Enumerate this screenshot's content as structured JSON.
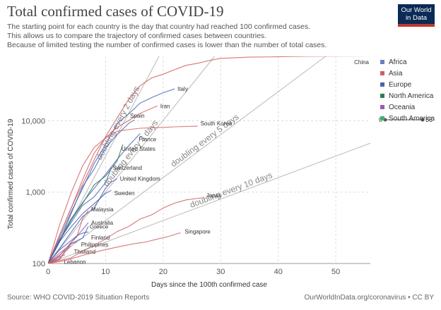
{
  "header": {
    "title": "Total confirmed cases of COVID-19",
    "subtitle_lines": [
      "The starting point for each country is the day that country had reached 100 confirmed cases.",
      "This allows us to compare the trajectory of confirmed cases between countries.",
      "Because of limited testing the number of confirmed cases is lower than the number of total cases."
    ]
  },
  "logo": {
    "line1": "Our World",
    "line2": "in Data"
  },
  "footer": {
    "source": "Source: WHO COVID-2019 Situation Reports",
    "credit": "OurWorldInData.org/coronavirus • CC BY"
  },
  "timeline": {
    "start": "0",
    "end": "56"
  },
  "colors": {
    "Africa": "#6d7fc1",
    "Asia": "#d05f60",
    "Europe": "#4a63b0",
    "North America": "#2e7d4f",
    "Oceania": "#9b59b6",
    "South America": "#3cb371",
    "grid": "#dddddd",
    "doubling": "#b8b8b8"
  },
  "chart_data": {
    "type": "line",
    "xlabel": "Days since the 100th confirmed case",
    "ylabel": "Total confirmed cases of COVID-19",
    "xlim": [
      0,
      56
    ],
    "ylim": [
      100,
      80000
    ],
    "yscale": "log",
    "x_ticks": [
      0,
      10,
      20,
      30,
      40,
      50
    ],
    "y_ticks": [
      {
        "value": 100,
        "label": "100"
      },
      {
        "value": 1000,
        "label": "1,000"
      },
      {
        "value": 10000,
        "label": "10,000"
      }
    ],
    "grid": true,
    "legend_position": "right",
    "legend": [
      "Africa",
      "Asia",
      "Europe",
      "North America",
      "Oceania",
      "South America"
    ],
    "doubling_lines": [
      {
        "label": "doubling every 2 days",
        "doubling_days": 2
      },
      {
        "label": "doubling every 3 days",
        "doubling_days": 3
      },
      {
        "label": "doubling every 5 days",
        "doubling_days": 5
      },
      {
        "label": "doubling every 10 days",
        "doubling_days": 10
      }
    ],
    "series": [
      {
        "name": "China",
        "region": "Asia",
        "points": [
          [
            0,
            100
          ],
          [
            2,
            250
          ],
          [
            4,
            600
          ],
          [
            6,
            1300
          ],
          [
            8,
            2800
          ],
          [
            10,
            6000
          ],
          [
            12,
            11000
          ],
          [
            14,
            20000
          ],
          [
            16,
            31000
          ],
          [
            18,
            40000
          ],
          [
            20,
            45000
          ],
          [
            22,
            52000
          ],
          [
            24,
            60000
          ],
          [
            26,
            64000
          ],
          [
            28,
            70000
          ],
          [
            30,
            75000
          ],
          [
            35,
            78000
          ],
          [
            40,
            79000
          ],
          [
            45,
            80000
          ],
          [
            50,
            80500
          ],
          [
            56,
            81000
          ]
        ]
      },
      {
        "name": "Italy",
        "region": "Europe",
        "points": [
          [
            0,
            100
          ],
          [
            2,
            229
          ],
          [
            4,
            528
          ],
          [
            6,
            1128
          ],
          [
            8,
            2502
          ],
          [
            10,
            4636
          ],
          [
            12,
            9172
          ],
          [
            14,
            12462
          ],
          [
            16,
            17660
          ],
          [
            18,
            21157
          ],
          [
            20,
            24747
          ],
          [
            22,
            27980
          ]
        ]
      },
      {
        "name": "Iran",
        "region": "Asia",
        "points": [
          [
            0,
            100
          ],
          [
            2,
            250
          ],
          [
            4,
            593
          ],
          [
            6,
            1501
          ],
          [
            8,
            3513
          ],
          [
            10,
            5823
          ],
          [
            12,
            8042
          ],
          [
            14,
            10075
          ],
          [
            16,
            12729
          ],
          [
            18,
            14991
          ],
          [
            19,
            16169
          ]
        ]
      },
      {
        "name": "Spain",
        "region": "Europe",
        "points": [
          [
            0,
            100
          ],
          [
            2,
            200
          ],
          [
            4,
            500
          ],
          [
            6,
            1200
          ],
          [
            8,
            2100
          ],
          [
            10,
            4200
          ],
          [
            12,
            6391
          ],
          [
            14,
            9191
          ],
          [
            15,
            10300
          ]
        ]
      },
      {
        "name": "France",
        "region": "Europe",
        "points": [
          [
            0,
            100
          ],
          [
            2,
            212
          ],
          [
            4,
            423
          ],
          [
            6,
            716
          ],
          [
            8,
            1126
          ],
          [
            10,
            1784
          ],
          [
            12,
            2876
          ],
          [
            14,
            4469
          ],
          [
            16,
            6633
          ]
        ]
      },
      {
        "name": "South Korea",
        "region": "Asia",
        "points": [
          [
            0,
            100
          ],
          [
            2,
            346
          ],
          [
            4,
            977
          ],
          [
            6,
            2337
          ],
          [
            8,
            4212
          ],
          [
            10,
            5766
          ],
          [
            12,
            7134
          ],
          [
            14,
            7513
          ],
          [
            16,
            7869
          ],
          [
            18,
            7979
          ],
          [
            20,
            8086
          ],
          [
            22,
            8236
          ],
          [
            24,
            8320
          ],
          [
            26,
            8413
          ]
        ]
      },
      {
        "name": "United States",
        "region": "North America",
        "points": [
          [
            0,
            100
          ],
          [
            2,
            213
          ],
          [
            4,
            402
          ],
          [
            6,
            696
          ],
          [
            8,
            1264
          ],
          [
            10,
            1678
          ],
          [
            12,
            2726
          ],
          [
            13,
            4661
          ]
        ]
      },
      {
        "name": "Switzerland",
        "region": "Europe",
        "points": [
          [
            0,
            100
          ],
          [
            2,
            214
          ],
          [
            4,
            374
          ],
          [
            6,
            652
          ],
          [
            8,
            858
          ],
          [
            10,
            1359
          ],
          [
            11,
            2200
          ]
        ]
      },
      {
        "name": "United Kingdom",
        "region": "Europe",
        "points": [
          [
            0,
            100
          ],
          [
            2,
            163
          ],
          [
            4,
            273
          ],
          [
            6,
            456
          ],
          [
            8,
            590
          ],
          [
            10,
            1140
          ],
          [
            11,
            1391
          ],
          [
            12,
            1543
          ]
        ]
      },
      {
        "name": "Sweden",
        "region": "Europe",
        "points": [
          [
            0,
            100
          ],
          [
            2,
            203
          ],
          [
            4,
            326
          ],
          [
            6,
            500
          ],
          [
            8,
            687
          ],
          [
            10,
            961
          ],
          [
            11,
            1059
          ]
        ]
      },
      {
        "name": "Malaysia",
        "region": "Asia",
        "points": [
          [
            0,
            100
          ],
          [
            2,
            129
          ],
          [
            4,
            197
          ],
          [
            5,
            238
          ],
          [
            6,
            428
          ],
          [
            7,
            553
          ]
        ]
      },
      {
        "name": "Australia",
        "region": "Oceania",
        "points": [
          [
            0,
            100
          ],
          [
            2,
            128
          ],
          [
            4,
            197
          ],
          [
            6,
            298
          ],
          [
            7,
            375
          ]
        ]
      },
      {
        "name": "Greece",
        "region": "Europe",
        "points": [
          [
            0,
            100
          ],
          [
            2,
            117
          ],
          [
            4,
            190
          ],
          [
            6,
            228
          ],
          [
            7,
            331
          ]
        ]
      },
      {
        "name": "Finland",
        "region": "Europe",
        "points": [
          [
            0,
            100
          ],
          [
            2,
            155
          ],
          [
            4,
            210
          ],
          [
            5,
            244
          ],
          [
            6,
            267
          ],
          [
            7,
            277
          ]
        ]
      },
      {
        "name": "Philippines",
        "region": "Asia",
        "points": [
          [
            0,
            100
          ],
          [
            2,
            140
          ],
          [
            4,
            187
          ],
          [
            5,
            202
          ]
        ]
      },
      {
        "name": "Thailand",
        "region": "Asia",
        "points": [
          [
            0,
            100
          ],
          [
            2,
            114
          ],
          [
            3,
            147
          ],
          [
            4,
            177
          ]
        ]
      },
      {
        "name": "Lebanon",
        "region": "Asia",
        "points": [
          [
            0,
            100
          ],
          [
            1,
            110
          ],
          [
            2,
            124
          ],
          [
            3,
            133
          ]
        ]
      },
      {
        "name": "Japan",
        "region": "Asia",
        "points": [
          [
            0,
            100
          ],
          [
            2,
            110
          ],
          [
            4,
            120
          ],
          [
            6,
            150
          ],
          [
            8,
            180
          ],
          [
            10,
            220
          ],
          [
            12,
            280
          ],
          [
            14,
            330
          ],
          [
            16,
            420
          ],
          [
            18,
            480
          ],
          [
            20,
            600
          ],
          [
            22,
            700
          ],
          [
            24,
            780
          ],
          [
            26,
            820
          ],
          [
            27,
            833
          ]
        ]
      },
      {
        "name": "Singapore",
        "region": "Asia",
        "points": [
          [
            0,
            100
          ],
          [
            3,
            110
          ],
          [
            6,
            130
          ],
          [
            9,
            150
          ],
          [
            12,
            170
          ],
          [
            15,
            190
          ],
          [
            17,
            200
          ],
          [
            19,
            220
          ],
          [
            21,
            240
          ],
          [
            23,
            270
          ]
        ]
      }
    ]
  }
}
